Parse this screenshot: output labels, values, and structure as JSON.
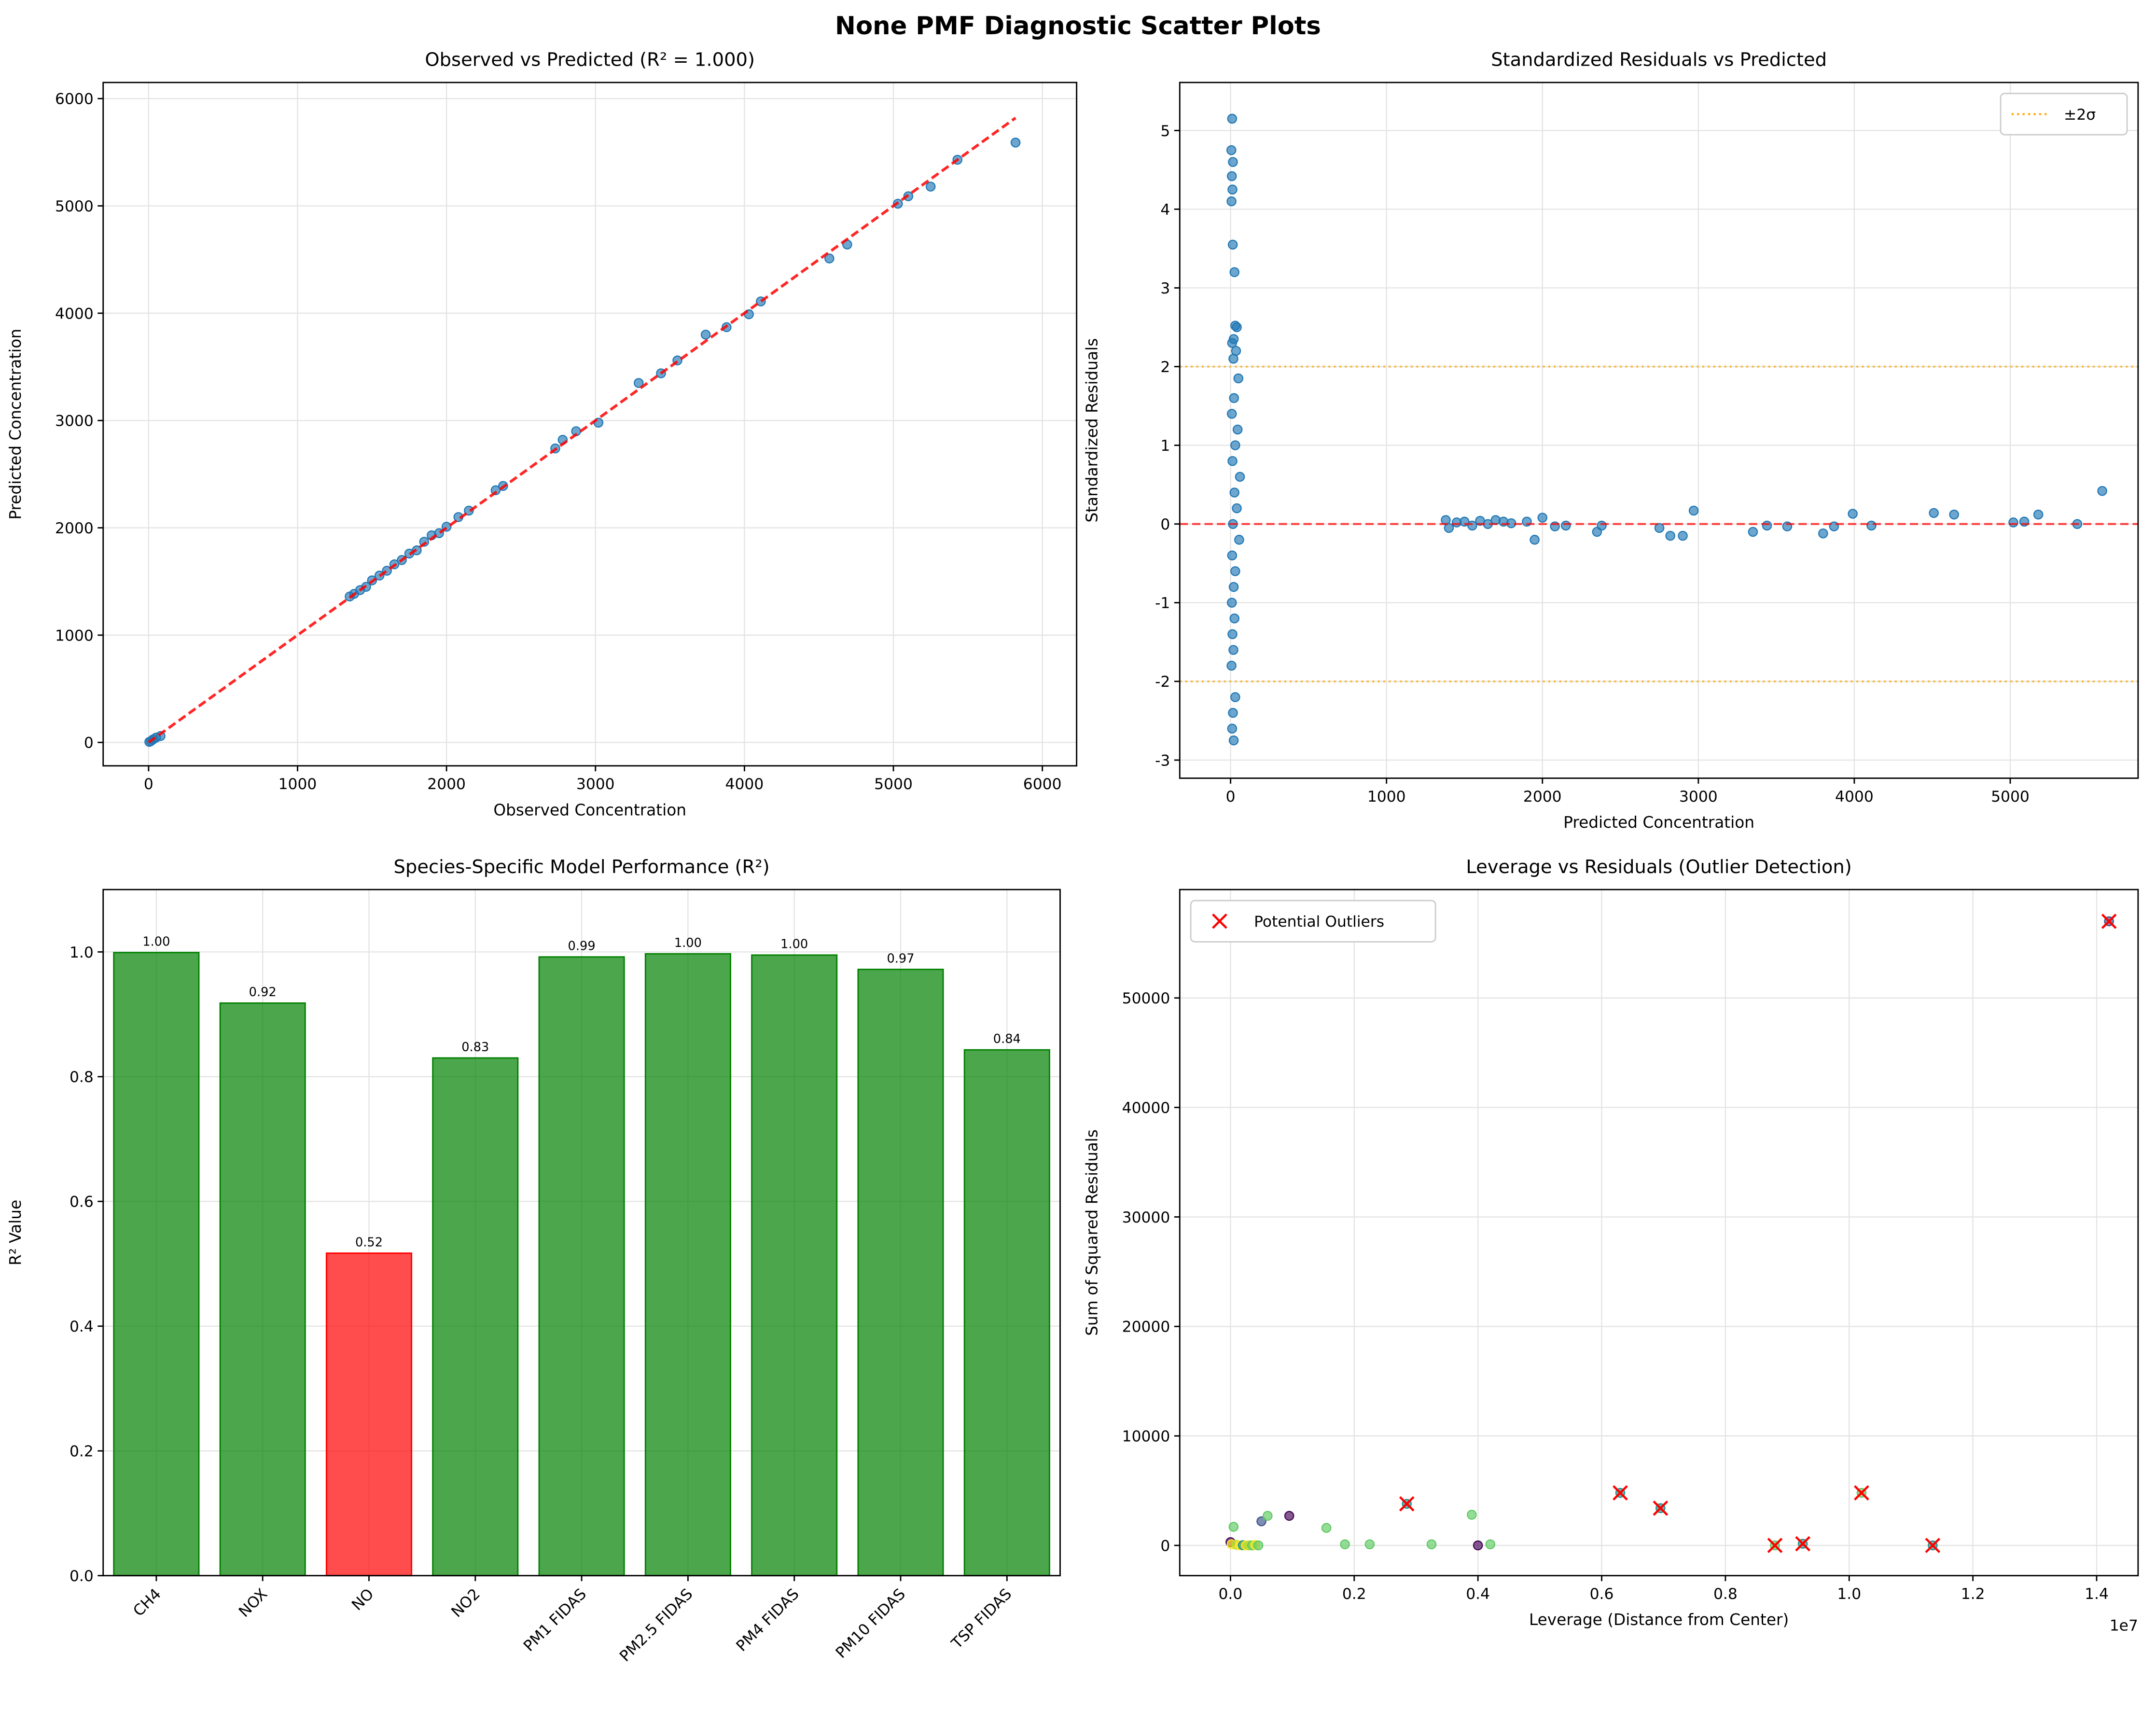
{
  "title": "None PMF Diagnostic Scatter Plots",
  "chart_data": [
    {
      "type": "scatter",
      "title": "Observed vs Predicted (R² = 1.000)",
      "x_label": "Observed Concentration",
      "y_label": "Predicted Concentration",
      "xlim": [
        -305,
        6230
      ],
      "ylim": [
        -218,
        6150
      ],
      "xticks": [
        0,
        1000,
        2000,
        3000,
        4000,
        5000,
        6000
      ],
      "yticks": [
        0,
        1000,
        2000,
        3000,
        4000,
        5000,
        6000
      ],
      "grid": true,
      "series": [
        {
          "color": "#1f77b4",
          "marker": "o",
          "x": [
            5,
            15,
            30,
            50,
            80,
            1350,
            1380,
            1420,
            1460,
            1500,
            1550,
            1600,
            1650,
            1700,
            1750,
            1800,
            1850,
            1900,
            1950,
            2000,
            2080,
            2150,
            2330,
            2380,
            2730,
            2780,
            2870,
            3020,
            3290,
            3440,
            3550,
            3740,
            3880,
            4030,
            4110,
            4570,
            4690,
            5030,
            5100,
            5250,
            5430,
            5820
          ],
          "values": [
            5,
            12,
            28,
            45,
            60,
            1360,
            1385,
            1420,
            1450,
            1510,
            1555,
            1600,
            1660,
            1700,
            1760,
            1790,
            1870,
            1930,
            1950,
            2010,
            2100,
            2160,
            2350,
            2390,
            2740,
            2820,
            2900,
            2980,
            3350,
            3440,
            3560,
            3800,
            3870,
            3990,
            4110,
            4510,
            4640,
            5020,
            5090,
            5180,
            5430,
            5590
          ]
        }
      ],
      "lines": [
        {
          "color": "red",
          "style": "dashed",
          "x": [
            0,
            5820
          ],
          "values": [
            0,
            5820
          ]
        }
      ]
    },
    {
      "type": "scatter",
      "title": "Standardized Residuals vs Predicted",
      "x_label": "Predicted Concentration",
      "y_label": "Standardized Residuals",
      "xlim": [
        -326,
        5820
      ],
      "ylim": [
        -3.23,
        5.61
      ],
      "xticks": [
        0,
        1000,
        2000,
        3000,
        4000,
        5000
      ],
      "yticks": [
        -3,
        -2,
        -1,
        0,
        1,
        2,
        3,
        4,
        5
      ],
      "grid": true,
      "legend": "upper right",
      "series": [
        {
          "color": "#1f77b4",
          "marker": "o",
          "x": [
            10,
            5,
            15,
            8,
            12,
            6,
            14,
            25,
            30,
            40,
            20,
            10,
            35,
            18,
            50,
            22,
            8,
            45,
            30,
            12,
            60,
            25,
            40,
            15,
            55,
            10,
            30,
            20,
            8,
            25,
            12,
            18,
            6,
            30,
            15,
            10,
            20,
            1380,
            1400,
            1450,
            1500,
            1550,
            1600,
            1650,
            1700,
            1750,
            1800,
            1900,
            1950,
            2000,
            2080,
            2150,
            2350,
            2380,
            2750,
            2820,
            2900,
            2970,
            3350,
            3440,
            3570,
            3800,
            3870,
            3990,
            4110,
            4510,
            4640,
            5020,
            5090,
            5180,
            5430,
            5590
          ],
          "values": [
            5.15,
            4.75,
            4.6,
            4.42,
            4.25,
            4.1,
            3.55,
            3.2,
            2.52,
            2.5,
            2.35,
            2.3,
            2.2,
            2.1,
            1.85,
            1.6,
            1.4,
            1.2,
            1.0,
            0.8,
            0.6,
            0.4,
            0.2,
            0,
            -0.2,
            -0.4,
            -0.6,
            -0.8,
            -1.0,
            -1.2,
            -1.4,
            -1.6,
            -1.8,
            -2.2,
            -2.4,
            -2.6,
            -2.75,
            0.05,
            -0.05,
            0.02,
            0.03,
            -0.02,
            0.04,
            0,
            0.05,
            0.03,
            0.01,
            0.03,
            -0.2,
            0.08,
            -0.03,
            -0.02,
            -0.1,
            -0.02,
            -0.05,
            -0.15,
            -0.15,
            0.17,
            -0.1,
            -0.02,
            -0.03,
            -0.12,
            -0.03,
            0.13,
            -0.02,
            0.14,
            0.12,
            0.02,
            0.03,
            0.12,
            0,
            0.42
          ]
        }
      ],
      "hlines": [
        {
          "value": 0,
          "color": "red",
          "style": "dashed"
        },
        {
          "value": 2,
          "color": "orange",
          "style": "dotted",
          "name": "±2σ"
        },
        {
          "value": -2,
          "color": "orange",
          "style": "dotted"
        }
      ]
    },
    {
      "type": "bar",
      "title": "Species-Specific Model Performance (R²)",
      "y_label": "R² Value",
      "categories": [
        "CH4",
        "NOX",
        "NO",
        "NO2",
        "PM1 FIDAS",
        "PM2.5 FIDAS",
        "PM4 FIDAS",
        "PM10 FIDAS",
        "TSP FIDAS"
      ],
      "values": [
        0.999,
        0.918,
        0.517,
        0.83,
        0.992,
        0.997,
        0.995,
        0.972,
        0.843
      ],
      "value_labels": [
        "1.00",
        "0.92",
        "0.52",
        "0.83",
        "0.99",
        "1.00",
        "1.00",
        "0.97",
        "0.84"
      ],
      "colors": [
        "green",
        "green",
        "red",
        "green",
        "green",
        "green",
        "green",
        "green",
        "green"
      ],
      "ylim": [
        0,
        1.1
      ],
      "yticks": [
        {
          "value": 0,
          "label": "0.0"
        },
        {
          "value": 0.2,
          "label": "0.2"
        },
        {
          "value": 0.4,
          "label": "0.4"
        },
        {
          "value": 0.6,
          "label": "0.6"
        },
        {
          "value": 0.8,
          "label": "0.8"
        },
        {
          "value": 1,
          "label": "1.0"
        }
      ],
      "grid": true,
      "xtick_rotation": 45
    },
    {
      "type": "scatter",
      "title": "Leverage vs Residuals (Outlier Detection)",
      "x_label": "Leverage (Distance from Center)",
      "y_label": "Sum of Squared Residuals",
      "x_offset_label": "1e7",
      "xlim": [
        -820000,
        14670000
      ],
      "ylim": [
        -2760,
        59900
      ],
      "xticks": [
        {
          "value": 0,
          "label": "0.0"
        },
        {
          "value": 2000000,
          "label": "0.2"
        },
        {
          "value": 4000000,
          "label": "0.4"
        },
        {
          "value": 6000000,
          "label": "0.6"
        },
        {
          "value": 8000000,
          "label": "0.8"
        },
        {
          "value": 10000000,
          "label": "1.0"
        },
        {
          "value": 12000000,
          "label": "1.2"
        },
        {
          "value": 14000000,
          "label": "1.4"
        }
      ],
      "yticks": [
        0,
        10000,
        20000,
        30000,
        40000,
        50000
      ],
      "grid": true,
      "legend": "upper left",
      "series": [
        {
          "marker": "o",
          "colors": [
            "#440154",
            "#fde725",
            "#5ec962",
            "#b5de2b",
            "#fde725",
            "#21918c",
            "#fde725",
            "#b5de2b",
            "#5ec962",
            "#fde725",
            "#5ec962",
            "#3b528b",
            "#5ec962",
            "#440154",
            "#5ec962",
            "#5ec962",
            "#5ec962",
            "#21918c",
            "#5ec962",
            "#5ec962",
            "#440154",
            "#5ec962",
            "#21918c",
            "#21918c",
            "#5ec962",
            "#21918c",
            "#5ec962",
            "#21918c",
            "#3b528b"
          ],
          "x": [
            0,
            20000,
            50000,
            100000,
            150000,
            200000,
            250000,
            300000,
            350000,
            400000,
            450000,
            500000,
            600000,
            950000,
            1550000,
            1850000,
            2250000,
            2850000,
            3250000,
            3900000,
            4000000,
            4200000,
            6300000,
            6950000,
            8800000,
            9250000,
            10200000,
            11350000,
            14200000
          ],
          "values": [
            300,
            100,
            1700,
            50,
            0,
            20,
            0,
            0,
            0,
            50,
            0,
            2200,
            2700,
            2700,
            1600,
            100,
            100,
            3800,
            100,
            2800,
            0,
            100,
            4800,
            3400,
            0,
            150,
            4800,
            0,
            57000
          ]
        },
        {
          "name": "Potential Outliers",
          "marker": "x",
          "color": "red",
          "x": [
            2850000,
            6300000,
            6950000,
            8800000,
            9250000,
            10200000,
            11350000,
            14200000
          ],
          "values": [
            3800,
            4800,
            3400,
            0,
            150,
            4800,
            0,
            57000
          ]
        }
      ]
    }
  ]
}
